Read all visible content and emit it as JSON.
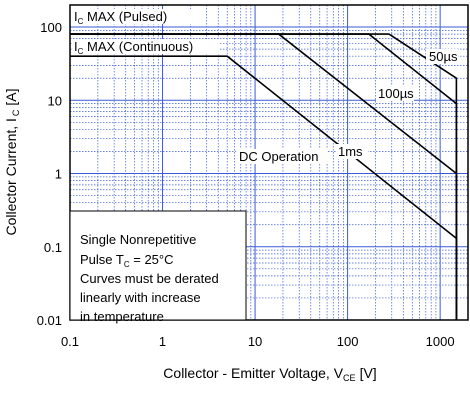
{
  "chart_data": {
    "type": "line",
    "title": "",
    "xlabel": "Collector - Emitter Voltage, V",
    "xlabel_sub": "CE",
    "xlabel_unit": "[V]",
    "ylabel": "Collector Current, I",
    "ylabel_sub": "C",
    "ylabel_unit": "[A]",
    "x_scale": "log",
    "y_scale": "log",
    "xlim": [
      0.1,
      2000
    ],
    "ylim": [
      0.01,
      200
    ],
    "grid": true,
    "grid_color": "#3a5bd9",
    "x_ticks": [
      {
        "value": 0.1,
        "label": "0.1"
      },
      {
        "value": 1,
        "label": "1"
      },
      {
        "value": 10,
        "label": "10"
      },
      {
        "value": 100,
        "label": "100"
      },
      {
        "value": 1000,
        "label": "1000"
      }
    ],
    "y_ticks": [
      {
        "value": 0.01,
        "label": "0.01"
      },
      {
        "value": 0.1,
        "label": "0.1"
      },
      {
        "value": 1,
        "label": "1"
      },
      {
        "value": 10,
        "label": "10"
      },
      {
        "value": 100,
        "label": "100"
      }
    ],
    "series": [
      {
        "name": "50µs",
        "points": [
          [
            0.1,
            80
          ],
          [
            280,
            80
          ],
          [
            1500,
            20
          ],
          [
            1500,
            0.01
          ]
        ]
      },
      {
        "name": "100µs",
        "points": [
          [
            0.1,
            80
          ],
          [
            170,
            80
          ],
          [
            1500,
            9
          ],
          [
            1500,
            0.01
          ]
        ]
      },
      {
        "name": "1ms",
        "points": [
          [
            0.1,
            80
          ],
          [
            18,
            80
          ],
          [
            1500,
            1
          ],
          [
            1500,
            0.01
          ]
        ]
      },
      {
        "name": "DC Operation",
        "points": [
          [
            0.1,
            40
          ],
          [
            5,
            40
          ],
          [
            1500,
            0.13
          ],
          [
            1500,
            0.01
          ]
        ]
      }
    ],
    "limit_labels": [
      {
        "prefix": "I",
        "sub": "C",
        "suffix": " MAX (Pulsed)"
      },
      {
        "prefix": "I",
        "sub": "C",
        "suffix": " MAX (Continuous)"
      }
    ],
    "note": {
      "line1": "Single Nonrepetitive",
      "line2_prefix": "Pulse T",
      "line2_sub": "C",
      "line2_suffix": " = 25°C",
      "line3": "Curves must be derated",
      "line4": "linearly with increase",
      "line5": "in temperature"
    }
  }
}
